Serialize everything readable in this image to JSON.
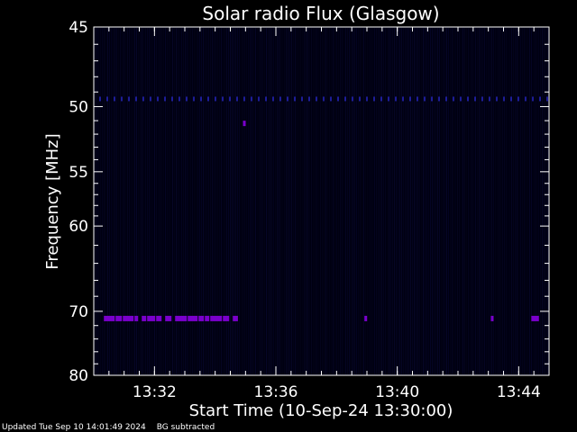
{
  "chart_data": {
    "type": "heatmap",
    "title": "Solar radio Flux (Glasgow)",
    "xlabel": "Start Time (10-Sep-24 13:30:00)",
    "ylabel": "Frequency [MHz]",
    "x_range": [
      "13:30:00",
      "13:45:00"
    ],
    "x_ticks": [
      "13:32",
      "13:36",
      "13:40",
      "13:44"
    ],
    "y_ticks": [
      45,
      50,
      55,
      60,
      70,
      80
    ],
    "ylim": [
      45,
      80
    ],
    "y_scale": "reciprocal",
    "colormap": [
      "#00001a",
      "#1a1a7a",
      "#2a2ad0",
      "#7a00cc"
    ],
    "features": [
      {
        "frequency_mhz": 71,
        "kind": "band",
        "time_start": "13:30:20",
        "time_end": "13:34:45"
      },
      {
        "frequency_mhz": 71,
        "kind": "spot",
        "time_start": "13:38:55",
        "time_end": "13:39:00"
      },
      {
        "frequency_mhz": 71,
        "kind": "spot",
        "time_start": "13:43:05",
        "time_end": "13:43:10"
      },
      {
        "frequency_mhz": 71,
        "kind": "spot",
        "time_start": "13:44:25",
        "time_end": "13:44:40"
      },
      {
        "frequency_mhz": 49.5,
        "kind": "dots",
        "time_start": "13:30:00",
        "time_end": "13:45:00"
      },
      {
        "frequency_mhz": 51.2,
        "kind": "spot",
        "time_start": "13:34:55",
        "time_end": "13:35:00"
      }
    ]
  },
  "footer": {
    "updated": "Updated Tue Sep 10 14:01:49 2024",
    "note": "BG subtracted"
  }
}
